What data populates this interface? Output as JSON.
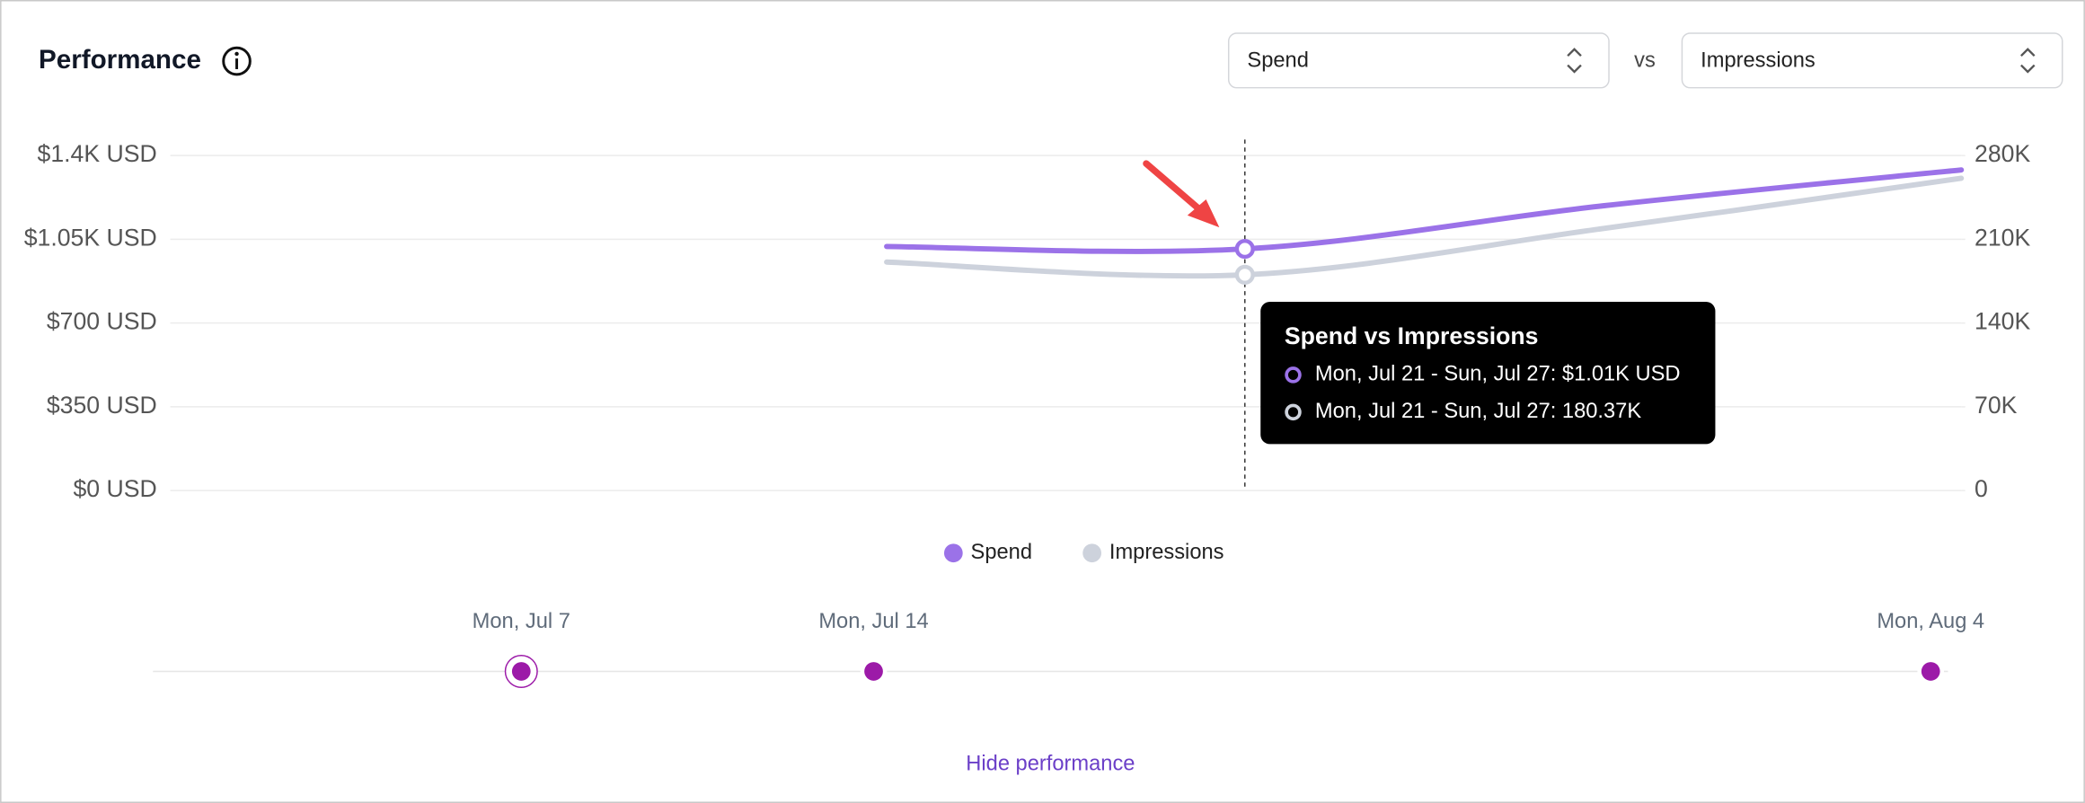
{
  "header": {
    "title": "Performance",
    "metric_a": "Spend",
    "separator": "vs",
    "metric_b": "Impressions"
  },
  "chart_data": {
    "type": "line",
    "categories": [
      null,
      null,
      null,
      "Mon, Jul 21 - Sun, Jul 27",
      null,
      null
    ],
    "series": [
      {
        "name": "Spend",
        "color": "#9b72e8",
        "values": [
          null,
          null,
          1020,
          1010,
          1190,
          1340
        ]
      },
      {
        "name": "Impressions",
        "color": "#cdd2dc",
        "axis": "y2",
        "values": [
          null,
          null,
          191000,
          180370,
          219000,
          261000
        ]
      }
    ],
    "ylim": [
      0,
      1400
    ],
    "yticks": [
      {
        "value": 0,
        "label": "$0 USD"
      },
      {
        "value": 350,
        "label": "$350 USD"
      },
      {
        "value": 700,
        "label": "$700 USD"
      },
      {
        "value": 1050,
        "label": "$1.05K USD"
      },
      {
        "value": 1400,
        "label": "$1.4K USD"
      }
    ],
    "y2lim": [
      0,
      280000
    ],
    "y2ticks": [
      0,
      {
        "value": 70000,
        "label": "70K"
      },
      {
        "value": 140000,
        "label": "140K"
      },
      {
        "value": 210000,
        "label": "210K"
      },
      {
        "value": 280000,
        "label": "280K"
      }
    ],
    "grid": true,
    "legend": "bottom",
    "hover_index": 3
  },
  "tooltip": {
    "title": "Spend vs Impressions",
    "rows": [
      "Mon, Jul 21 - Sun, Jul 27: $1.01K USD",
      "Mon, Jul 21 - Sun, Jul 27: 180.37K"
    ]
  },
  "timeline": {
    "labels": [
      "Mon, Jul 7",
      "Mon, Jul 14",
      "Mon, Aug 4"
    ]
  },
  "footer": {
    "link": "Hide performance"
  }
}
